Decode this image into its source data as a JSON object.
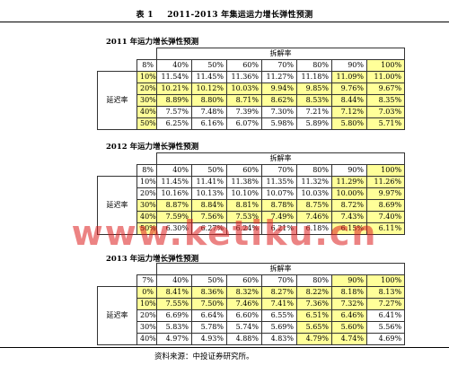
{
  "title": {
    "number": "表 1",
    "text": "2011-2013 年集运运力增长弹性预测"
  },
  "tables": [
    {
      "label": "2011 年运力增长弹性预测",
      "group_header": "拆解率",
      "corner_value": "8%",
      "columns": [
        "40%",
        "50%",
        "60%",
        "70%",
        "80%",
        "90%",
        "100%"
      ],
      "row_label": "延迟率",
      "rows": [
        {
          "pct": "10%",
          "values": [
            "11.54%",
            "11.45%",
            "11.36%",
            "11.27%",
            "11.18%",
            "11.09%",
            "11.00%"
          ]
        },
        {
          "pct": "20%",
          "values": [
            "10.21%",
            "10.12%",
            "10.03%",
            "9.94%",
            "9.85%",
            "9.76%",
            "9.67%"
          ]
        },
        {
          "pct": "30%",
          "values": [
            "8.89%",
            "8.80%",
            "8.71%",
            "8.62%",
            "8.53%",
            "8.44%",
            "8.35%"
          ]
        },
        {
          "pct": "40%",
          "values": [
            "7.57%",
            "7.48%",
            "7.39%",
            "7.30%",
            "7.21%",
            "7.12%",
            "7.03%"
          ]
        },
        {
          "pct": "50%",
          "values": [
            "6.25%",
            "6.16%",
            "6.07%",
            "5.98%",
            "5.89%",
            "5.80%",
            "5.71%"
          ]
        }
      ]
    },
    {
      "label": "2012 年运力增长弹性预测",
      "group_header": "拆解率",
      "corner_value": "8%",
      "columns": [
        "40%",
        "50%",
        "60%",
        "70%",
        "80%",
        "90%",
        "100%"
      ],
      "row_label": "延迟率",
      "rows": [
        {
          "pct": "10%",
          "values": [
            "11.45%",
            "11.41%",
            "11.38%",
            "11.35%",
            "11.32%",
            "11.29%",
            "11.26%"
          ]
        },
        {
          "pct": "20%",
          "values": [
            "10.16%",
            "10.13%",
            "10.10%",
            "10.07%",
            "10.03%",
            "10.00%",
            "9.97%"
          ]
        },
        {
          "pct": "30%",
          "values": [
            "8.87%",
            "8.84%",
            "8.81%",
            "8.78%",
            "8.75%",
            "8.72%",
            "8.69%"
          ]
        },
        {
          "pct": "40%",
          "values": [
            "7.59%",
            "7.56%",
            "7.53%",
            "7.49%",
            "7.46%",
            "7.43%",
            "7.40%"
          ]
        },
        {
          "pct": "50%",
          "values": [
            "6.30%",
            "6.27%",
            "6.24%",
            "6.21%",
            "6.18%",
            "6.15%",
            "6.11%"
          ]
        }
      ]
    },
    {
      "label": "2013 年运力增长弹性预测",
      "group_header": "拆解率",
      "corner_value": "7%",
      "columns": [
        "40%",
        "50%",
        "60%",
        "70%",
        "80%",
        "90%",
        "100%"
      ],
      "row_label": "延迟率",
      "rows": [
        {
          "pct": "0%",
          "values": [
            "8.41%",
            "8.36%",
            "8.32%",
            "8.27%",
            "8.22%",
            "8.18%",
            "8.13%"
          ]
        },
        {
          "pct": "10%",
          "values": [
            "7.55%",
            "7.50%",
            "7.46%",
            "7.41%",
            "7.36%",
            "7.32%",
            "7.27%"
          ]
        },
        {
          "pct": "20%",
          "values": [
            "6.69%",
            "6.64%",
            "6.60%",
            "6.55%",
            "6.51%",
            "6.46%",
            "6.41%"
          ]
        },
        {
          "pct": "30%",
          "values": [
            "5.83%",
            "5.78%",
            "5.74%",
            "5.69%",
            "5.65%",
            "5.60%",
            "5.56%"
          ]
        },
        {
          "pct": "40%",
          "values": [
            "4.97%",
            "4.93%",
            "4.88%",
            "4.83%",
            "4.79%",
            "4.74%",
            "4.69%"
          ]
        }
      ]
    }
  ],
  "source": "资料来源：中投证券研究所。",
  "watermark": "www.ketiku.cn",
  "colors": {
    "highlight": "#ffff99",
    "watermark": "#dc1e1e"
  }
}
